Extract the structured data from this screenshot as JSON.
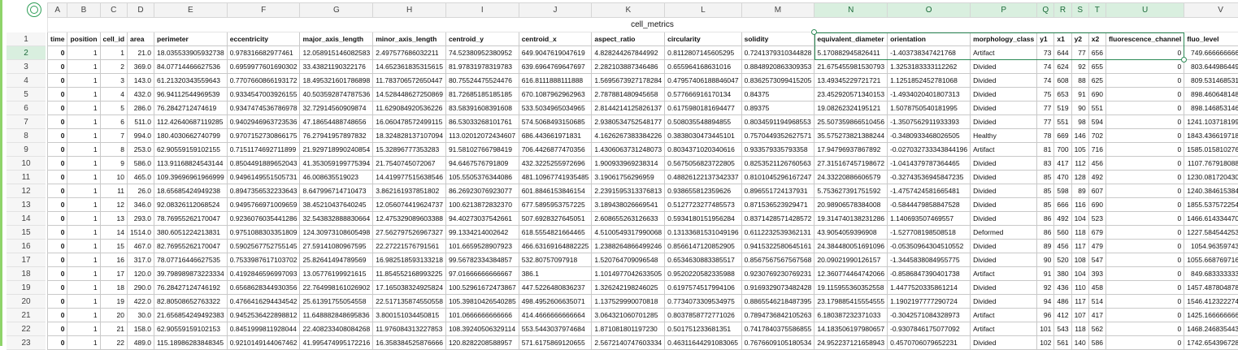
{
  "sheet": {
    "title": "cell_metrics",
    "columns": [
      "A",
      "B",
      "C",
      "D",
      "E",
      "F",
      "G",
      "H",
      "I",
      "J",
      "K",
      "L",
      "M",
      "N",
      "O",
      "P",
      "Q",
      "R",
      "S",
      "T",
      "U",
      "V"
    ],
    "selected_columns": [
      "N",
      "O",
      "P",
      "Q",
      "R",
      "S",
      "T",
      "U"
    ],
    "headers": [
      "time",
      "position",
      "cell_id",
      "area",
      "perimeter",
      "eccentricity",
      "major_axis_length",
      "minor_axis_length",
      "centroid_y",
      "centroid_x",
      "aspect_ratio",
      "circularity",
      "solidity",
      "equivalent_diameter",
      "orientation",
      "morphology_class",
      "y1",
      "x1",
      "y2",
      "x2",
      "fluorescence_channel",
      "fluo_level"
    ],
    "row_numbers": [
      "1",
      "2",
      "3",
      "4",
      "5",
      "6",
      "7",
      "8",
      "9",
      "10",
      "11",
      "12",
      "13",
      "14",
      "15",
      "16",
      "17",
      "18",
      "19",
      "20",
      "21",
      "22",
      "23"
    ],
    "active_row": "2",
    "rows": [
      [
        "0",
        "1",
        "1",
        "21.0",
        "18.035533905932738",
        "0.978316682977461",
        "12.058915146082583",
        "2.497577686032211",
        "74.52380952380952",
        "649.9047619047619",
        "4.828244267844992",
        "0.8112807145605295",
        "0.7241379310344828",
        "5.170882945826411",
        "-1.403738347421768",
        "Artifact",
        "73",
        "644",
        "77",
        "656",
        "0",
        "749.6666666666666"
      ],
      [
        "0",
        "1",
        "2",
        "369.0",
        "84.07714466627536",
        "0.6959977601690302",
        "33.43821190322176",
        "14.652361835315615",
        "81.97831978319783",
        "639.6964769647697",
        "2.282103887346486",
        "0.655964168631016",
        "0.8848920863309353",
        "21.675455981530793",
        "1.3253183333112262",
        "Divided",
        "74",
        "624",
        "92",
        "655",
        "0",
        "803.6449864498645"
      ],
      [
        "0",
        "1",
        "3",
        "143.0",
        "61.21320343559643",
        "0.7707660866193172",
        "18.495321601786898",
        "11.783706572650447",
        "80.75524475524476",
        "616.8111888111888",
        "1.5695673927178284",
        "0.47957406188846047",
        "0.8362573099415205",
        "13.49345229721721",
        "1.1251852452781068",
        "Divided",
        "74",
        "608",
        "88",
        "625",
        "0",
        "809.5314685314685"
      ],
      [
        "0",
        "1",
        "4",
        "432.0",
        "96.94112544969539",
        "0.9334547003926155",
        "40.503592874787536",
        "14.528448627250869",
        "81.72685185185185",
        "670.1087962962963",
        "2.787881480945658",
        "0.577666916170134",
        "0.84375",
        "23.452920571340153",
        "-1.4934020401807313",
        "Divided",
        "75",
        "653",
        "91",
        "690",
        "0",
        "898.4606481481482"
      ],
      [
        "0",
        "1",
        "5",
        "286.0",
        "76.2842712474619",
        "0.9347474536786978",
        "32.72914560909874",
        "11.629084920536226",
        "83.58391608391608",
        "533.5034965034965",
        "2.8144214125826137",
        "0.6175980181694477",
        "0.89375",
        "19.08262324195121",
        "1.5078750540181995",
        "Divided",
        "77",
        "519",
        "90",
        "551",
        "0",
        "898.1468531468531"
      ],
      [
        "0",
        "1",
        "6",
        "511.0",
        "112.42640687119285",
        "0.9402946963723536",
        "47.18654488748656",
        "16.060478572499115",
        "86.53033268101761",
        "574.5068493150685",
        "2.9380534752548177",
        "0.508035548894855",
        "0.8034591194968553",
        "25.507359866510456",
        "-1.3507562911933393",
        "Divided",
        "77",
        "551",
        "98",
        "594",
        "0",
        "1241.1037181996087"
      ],
      [
        "0",
        "1",
        "7",
        "994.0",
        "180.4030662740799",
        "0.9707152730866175",
        "76.27941957897832",
        "18.324828137107094",
        "113.02012072434607",
        "686.443661971831",
        "4.1626267383384226",
        "0.3838030473445101",
        "0.7570449352627571",
        "35.575273821388244",
        "-0.3480933468026505",
        "Healthy",
        "78",
        "669",
        "146",
        "702",
        "0",
        "1843.4366197183099"
      ],
      [
        "0",
        "1",
        "8",
        "253.0",
        "62.90559159102155",
        "0.7151174692711899",
        "21.929718990240854",
        "15.32896777353283",
        "91.58102766798419",
        "706.4426877470356",
        "1.4306063731248073",
        "0.8034371020340616",
        "0.933579335793358",
        "17.94796937867892",
        "-0.027032733343844196",
        "Artifact",
        "81",
        "700",
        "105",
        "716",
        "0",
        "1585.0158102766798"
      ],
      [
        "0",
        "1",
        "9",
        "586.0",
        "113.91168824543144",
        "0.8504491889652043",
        "41.353059199775394",
        "21.7540745072067",
        "94.6467576791809",
        "432.3225255972696",
        "1.900933969238314",
        "0.5675056823722805",
        "0.8253521126760563",
        "27.315167457198672",
        "-1.0414379787364465",
        "Divided",
        "83",
        "417",
        "112",
        "456",
        "0",
        "1107.7679180887371"
      ],
      [
        "0",
        "1",
        "10",
        "465.0",
        "109.39696961966999",
        "0.9496149551505731",
        "46.008635519023",
        "14.419977515638546",
        "105.5505376344086",
        "481.10967741935485",
        "3.19061756296959",
        "0.48826122137342337",
        "0.8101045296167247",
        "24.33220886606579",
        "-0.32743536945847235",
        "Divided",
        "85",
        "470",
        "128",
        "492",
        "0",
        "1230.0817204301075"
      ],
      [
        "0",
        "1",
        "11",
        "26.0",
        "18.65685424949238",
        "0.8947356532233643",
        "8.647996714710473",
        "3.862161937851802",
        "86.26923076923077",
        "601.8846153846154",
        "2.2391595313376813",
        "0.938655812359626",
        "0.896551724137931",
        "5.753627391751592",
        "-1.4757424581665481",
        "Divided",
        "85",
        "598",
        "89",
        "607",
        "0",
        "1240.3846153846155"
      ],
      [
        "0",
        "1",
        "12",
        "346.0",
        "92.08326112068524",
        "0.9495766971009659",
        "38.45210437640245",
        "12.056074419624737",
        "100.6213872832370",
        "677.5895953757225",
        "3.189438026669541",
        "0.5127723277485573",
        "0.871536523929471",
        "20.98906578384008",
        "-0.5844479858847528",
        "Divided",
        "85",
        "666",
        "116",
        "690",
        "0",
        "1855.5375722543354"
      ],
      [
        "0",
        "1",
        "13",
        "293.0",
        "78.76955262170047",
        "0.9236076035441286",
        "32.543832888830664",
        "12.475329089603388",
        "94.40273037542661",
        "507.6928327645051",
        "2.608655263126633",
        "0.5934180151956284",
        "0.8371428571428572",
        "19.314740138231286",
        "1.140693507469557",
        "Divided",
        "86",
        "492",
        "104",
        "523",
        "0",
        "1466.6143344709897"
      ],
      [
        "0",
        "1",
        "14",
        "1514.0",
        "380.6051224213831",
        "0.9751088303351809",
        "124.30973108605498",
        "27.562797526967327",
        "99.1334214002642",
        "618.5554821664465",
        "4.5100549317990068",
        "0.13133681531049196",
        "0.6112232539362131",
        "43.9054059396908",
        "-1.527708198508518",
        "Deformed",
        "86",
        "560",
        "118",
        "679",
        "0",
        "1227.5845442536327"
      ],
      [
        "0",
        "1",
        "15",
        "467.0",
        "82.76955262170047",
        "0.5902567752755145",
        "27.59141080967595",
        "22.27221576791561",
        "101.6659528907923",
        "466.63169164882225",
        "1.2388264866499246",
        "0.8566147120852905",
        "0.9415322580645161",
        "24.384480051691096",
        "-0.05350964304510552",
        "Divided",
        "89",
        "456",
        "117",
        "479",
        "0",
        "1054.963597430407"
      ],
      [
        "0",
        "1",
        "16",
        "317.0",
        "78.07716446627535",
        "0.7533987617103702",
        "25.82641494789569",
        "16.982518593133218",
        "99.56782334384857",
        "532.80757097918",
        "1.520764709096548",
        "0.6534630883385517",
        "0.8567567567567568",
        "20.09021990126157",
        "-1.3445838084955775",
        "Divided",
        "90",
        "520",
        "108",
        "547",
        "0",
        "1055.6687697160883"
      ],
      [
        "0",
        "1",
        "17",
        "120.0",
        "39.798989873223334",
        "0.4192846596997093",
        "13.05776199921615",
        "11.854552168993225",
        "97.01666666666667",
        "386.1",
        "1.1014977042633505",
        "0.9520220582335988",
        "0.9230769230769231",
        "12.360774464742066",
        "-0.8586847390401738",
        "Artifact",
        "91",
        "380",
        "104",
        "393",
        "0",
        "849.6833333333333"
      ],
      [
        "0",
        "1",
        "18",
        "290.0",
        "76.28427124746192",
        "0.6568628344930356",
        "22.764998161026902",
        "17.165038324925824",
        "100.52961672473867",
        "447.5226480836237",
        "1.326242198246025",
        "0.6197574517994106",
        "0.9169329073482428",
        "19.115955360352558",
        "1.4477520335861214",
        "Divided",
        "92",
        "436",
        "110",
        "458",
        "0",
        "1457.4878048780488"
      ],
      [
        "0",
        "1",
        "19",
        "422.0",
        "82.80508652763322",
        "0.4766416294434542",
        "25.61391755054558",
        "22.517135874550558",
        "105.39810426540285",
        "498.4952606635071",
        "1.137529990070818",
        "0.7734073309534975",
        "0.8865546218487395",
        "23.179885415554555",
        "1.1902197777290724",
        "Divided",
        "94",
        "486",
        "117",
        "514",
        "0",
        "1546.4123222748815"
      ],
      [
        "0",
        "1",
        "20",
        "30.0",
        "21.656854249492383",
        "0.9452536422898812",
        "11.648882848695836",
        "3.800151034450815",
        "101.0666666666666",
        "414.4666666666664",
        "3.064321060701285",
        "0.8037858772771026",
        "0.7894736842105263",
        "6.180387232371033",
        "-0.3042571084328973",
        "Artifact",
        "96",
        "412",
        "107",
        "417",
        "0",
        "1425.1666666666667"
      ],
      [
        "0",
        "1",
        "21",
        "158.0",
        "62.90559159102153",
        "0.8451999811928044",
        "22.408233408084268",
        "11.976084313227853",
        "108.39240506329114",
        "553.5443037974684",
        "1.871081801197230",
        "0.501751233681351",
        "0.7417840375586855",
        "14.183506197980657",
        "-0.9307846175077092",
        "Artifact",
        "101",
        "543",
        "118",
        "562",
        "0",
        "1468.2468354430378"
      ],
      [
        "0",
        "1",
        "22",
        "489.0",
        "115.18986283848345",
        "0.9210149144067462",
        "41.995474995172216",
        "16.358384525876666",
        "120.8282208588957",
        "571.6175869120655",
        "2.5672140747603334",
        "0.46311644291083065",
        "0.7676609105180534",
        "24.952237121658943",
        "0.4570706079652231",
        "Divided",
        "102",
        "561",
        "140",
        "586",
        "0",
        "1742.6543967280163"
      ]
    ]
  }
}
